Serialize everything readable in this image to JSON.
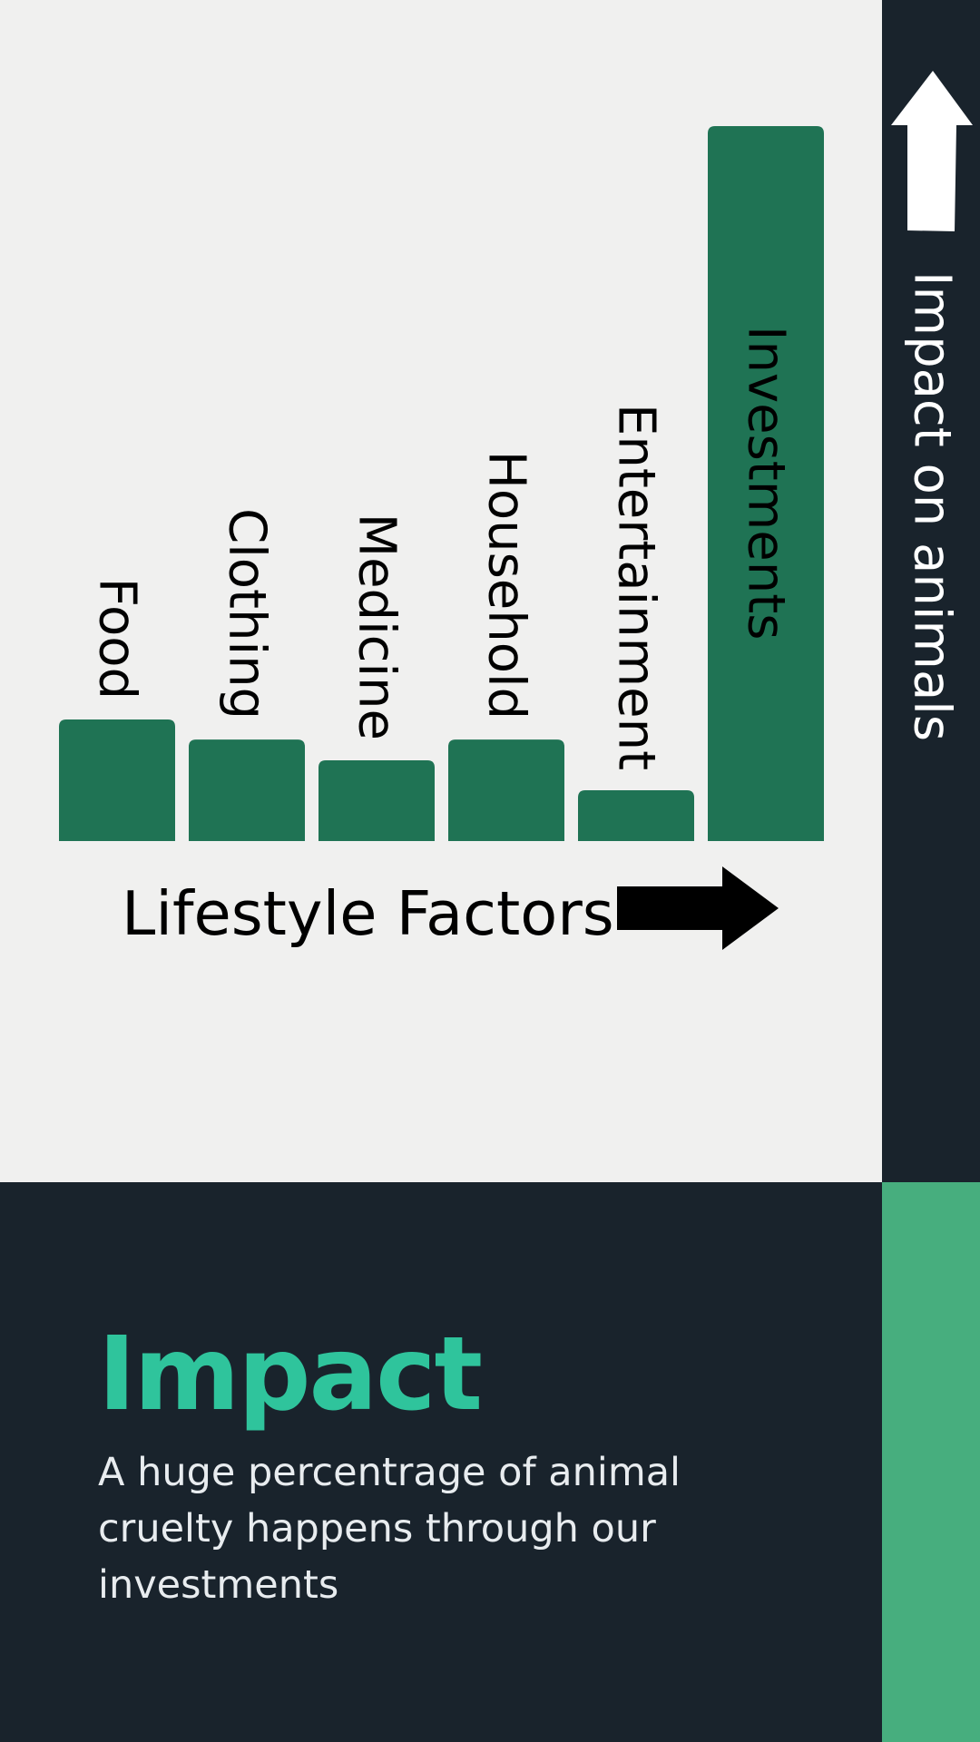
{
  "colors": {
    "background": "#f0f0ef",
    "dark_panel": "#19232c",
    "bar_fill": "#1f7354",
    "accent_green": "#47ae7e",
    "title_teal": "#2fc49c",
    "text_light": "#e8ecef",
    "arrow_up": "#ffffff",
    "arrow_right": "#000000"
  },
  "icons": {
    "x_axis_arrow": "arrow-right-icon",
    "y_axis_arrow": "arrow-up-icon"
  },
  "chart_data": {
    "type": "bar",
    "title": "",
    "xlabel": "Lifestyle Factors",
    "ylabel": "Impact on animals",
    "categories": [
      "Food",
      "Clothing",
      "Medicine",
      "Household",
      "Entertainment",
      "Investments"
    ],
    "values": [
      17,
      14.2,
      11.3,
      14.2,
      7.1,
      100
    ],
    "ylim": [
      0,
      100
    ],
    "grid": false,
    "legend": "none"
  },
  "panel": {
    "title": "Impact",
    "description": "A huge percentrage of animal cruelty happens through our investments"
  }
}
